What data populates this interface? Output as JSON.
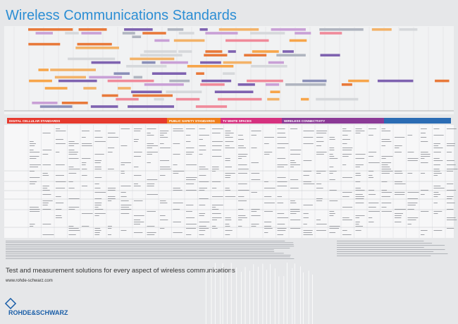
{
  "header": {
    "title": "Wireless Communications Standards"
  },
  "sections": [
    "DIGITAL CELLULAR STANDARDS",
    "PUBLIC SAFETY STANDARDS",
    "TV WHITE SPACES",
    "WIRELESS CONNECTIVITY"
  ],
  "footer": {
    "tagline": "Test and measurement solutions for every aspect of wireless communications",
    "url": "www.rohde-schwarz.com",
    "logo": "ROHDE&SCHWARZ"
  }
}
